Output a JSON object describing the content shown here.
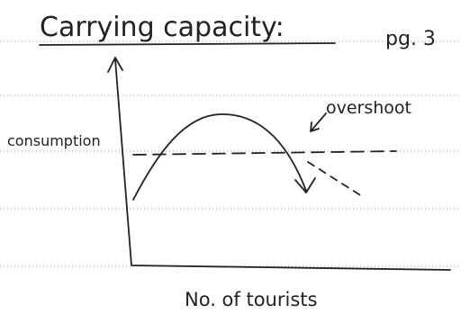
{
  "header": {
    "title": "Carrying capacity:",
    "page": "pg. 3"
  },
  "labels": {
    "overshoot": "overshoot",
    "consumption": "consumption",
    "x_axis": "No. of tourists"
  }
}
